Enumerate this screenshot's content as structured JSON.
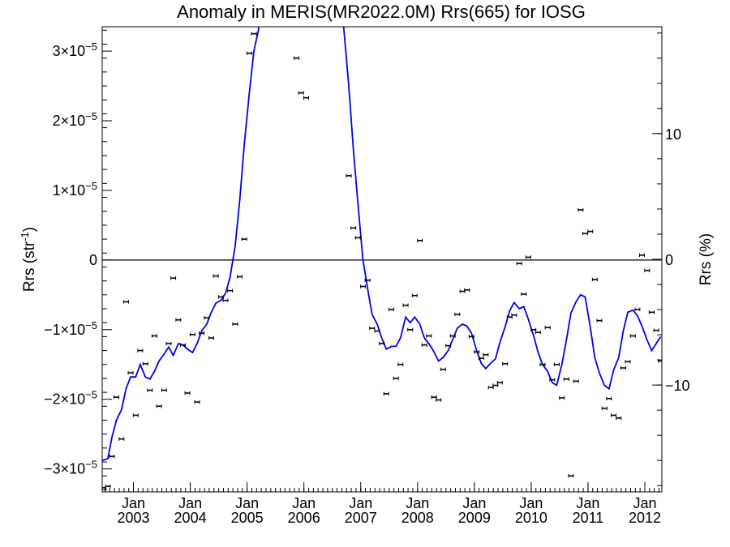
{
  "chart_data": {
    "type": "scatter",
    "title": "Anomaly in MERIS(MR2022.0M) Rrs(665) for IOSG",
    "ylabel": "Rrs (str",
    "ylabel_sup": "-1",
    "ylabel_close": ")",
    "y2label": "Rrs (%)",
    "xlim": [
      2002.45,
      2012.3
    ],
    "ylim": [
      -3.33e-05,
      3.35e-05
    ],
    "y2lim": [
      -18.5,
      18.5
    ],
    "grid": false,
    "zero_line": true,
    "y_ticks": [
      {
        "value": -3e-05,
        "mant": "−3×10",
        "exp": "−5"
      },
      {
        "value": -2e-05,
        "mant": "−2×10",
        "exp": "−5"
      },
      {
        "value": -1e-05,
        "mant": "−1×10",
        "exp": "−5"
      },
      {
        "value": 0,
        "mant": "0",
        "exp": ""
      },
      {
        "value": 1e-05,
        "mant": "1×10",
        "exp": "−5"
      },
      {
        "value": 2e-05,
        "mant": "2×10",
        "exp": "−5"
      },
      {
        "value": 3e-05,
        "mant": "3×10",
        "exp": "−5"
      }
    ],
    "y2_ticks": [
      {
        "value": -10,
        "label": "−10"
      },
      {
        "value": 0,
        "label": "0"
      },
      {
        "value": 10,
        "label": "10"
      }
    ],
    "x_ticks": [
      {
        "value": 2003.0,
        "month": "Jan",
        "year": "2003"
      },
      {
        "value": 2004.0,
        "month": "Jan",
        "year": "2004"
      },
      {
        "value": 2005.0,
        "month": "Jan",
        "year": "2005"
      },
      {
        "value": 2006.0,
        "month": "Jan",
        "year": "2006"
      },
      {
        "value": 2007.0,
        "month": "Jan",
        "year": "2007"
      },
      {
        "value": 2008.0,
        "month": "Jan",
        "year": "2008"
      },
      {
        "value": 2009.0,
        "month": "Jan",
        "year": "2009"
      },
      {
        "value": 2010.0,
        "month": "Jan",
        "year": "2010"
      },
      {
        "value": 2011.0,
        "month": "Jan",
        "year": "2011"
      },
      {
        "value": 2012.0,
        "month": "Jan",
        "year": "2012"
      }
    ],
    "series": [
      {
        "style": "points-with-errorbars",
        "color": "#000000",
        "x": [
          2002.47,
          2002.55,
          2002.62,
          2002.7,
          2002.79,
          2002.87,
          2002.95,
          2003.04,
          2003.12,
          2003.21,
          2003.29,
          2003.37,
          2003.45,
          2003.54,
          2003.62,
          2003.7,
          2003.79,
          2003.87,
          2003.95,
          2004.04,
          2004.12,
          2004.2,
          2004.29,
          2004.37,
          2004.45,
          2004.54,
          2004.62,
          2004.7,
          2004.79,
          2004.87,
          2004.95,
          2005.04,
          2005.12,
          2005.87,
          2005.95,
          2006.04,
          2006.79,
          2006.87,
          2006.95,
          2007.04,
          2007.12,
          2007.2,
          2007.29,
          2007.37,
          2007.45,
          2007.54,
          2007.62,
          2007.7,
          2007.79,
          2007.87,
          2007.95,
          2008.04,
          2008.12,
          2008.2,
          2008.29,
          2008.37,
          2008.45,
          2008.54,
          2008.62,
          2008.7,
          2008.79,
          2008.87,
          2008.95,
          2009.04,
          2009.12,
          2009.2,
          2009.29,
          2009.37,
          2009.45,
          2009.54,
          2009.62,
          2009.7,
          2009.79,
          2009.87,
          2009.95,
          2010.04,
          2010.12,
          2010.2,
          2010.29,
          2010.37,
          2010.45,
          2010.54,
          2010.62,
          2010.7,
          2010.79,
          2010.87,
          2010.95,
          2011.04,
          2011.12,
          2011.2,
          2011.29,
          2011.37,
          2011.45,
          2011.54,
          2011.62,
          2011.7,
          2011.79,
          2011.87,
          2011.95,
          2012.04,
          2012.12,
          2012.2,
          2012.28
        ],
        "y": [
          -3.27e-05,
          -3.25e-05,
          -2.82e-05,
          -1.97e-05,
          -2.57e-05,
          -6e-06,
          -1.62e-05,
          -2.23e-05,
          -1.3e-05,
          -1.49e-05,
          -1.87e-05,
          -1.09e-05,
          -2.1e-05,
          -1.87e-05,
          -1.2e-05,
          -2.6e-06,
          -8.6e-06,
          -1.22e-05,
          -1.91e-05,
          -1.07e-05,
          -2.04e-05,
          -1.05e-05,
          -8.3e-06,
          -1.12e-05,
          -2.3e-06,
          -5.3e-06,
          -5.8e-06,
          -4.4e-06,
          -9.2e-06,
          -2.4e-06,
          3e-06,
          2.97e-05,
          3.25e-05,
          2.9e-05,
          2.4e-05,
          2.33e-05,
          1.21e-05,
          4.6e-06,
          3.2e-06,
          -3.8e-06,
          -2.9e-06,
          -9.8e-06,
          -1.02e-05,
          -1.2e-05,
          -1.92e-05,
          -7.1e-06,
          -1.7e-05,
          -1.5e-05,
          -6.5e-06,
          -1e-05,
          -5.1e-06,
          2.8e-06,
          -1.22e-05,
          -1.09e-05,
          -1.97e-05,
          -2.01e-05,
          -1.57e-05,
          -1.23e-05,
          -1.09e-05,
          -7.8e-06,
          -4.5e-06,
          -4.3e-06,
          -1.1e-05,
          -1.32e-05,
          -1.41e-05,
          -1.36e-05,
          -1.83e-05,
          -1.8e-05,
          -1.76e-05,
          -1.49e-05,
          -8.2e-06,
          -7.9e-06,
          -5e-07,
          -4.9e-06,
          4e-07,
          -1e-05,
          -1.04e-05,
          -1.5e-05,
          -9.7e-06,
          -1.72e-05,
          -1.5e-05,
          -1.98e-05,
          -1.71e-05,
          -3.1e-05,
          -1.74e-05,
          7.2e-06,
          3.8e-06,
          4.1e-06,
          -2.8e-06,
          -8.7e-06,
          -2.13e-05,
          -1.99e-05,
          -2.23e-05,
          -2.27e-05,
          -1.55e-05,
          -1.46e-05,
          -1.09e-05,
          -7.1e-06,
          7e-07,
          -1.5e-06,
          -7.5e-06,
          -1.01e-05,
          -1.45e-05
        ],
        "error": 2e-07
      },
      {
        "style": "line",
        "color": "#0000ee",
        "x": [
          2002.45,
          2002.55,
          2002.62,
          2002.7,
          2002.79,
          2002.87,
          2002.95,
          2003.04,
          2003.12,
          2003.21,
          2003.29,
          2003.37,
          2003.45,
          2003.54,
          2003.62,
          2003.7,
          2003.79,
          2003.87,
          2003.95,
          2004.04,
          2004.12,
          2004.2,
          2004.29,
          2004.37,
          2004.45,
          2004.54,
          2004.62,
          2004.7,
          2004.79,
          2004.87,
          2004.95,
          2005.04,
          2005.12,
          2005.2,
          2005.29,
          2005.37,
          2005.45,
          2005.54,
          2005.62,
          2005.7,
          2005.79,
          2005.87,
          2005.95,
          2006.04,
          2006.12,
          2006.2,
          2006.29,
          2006.37,
          2006.45,
          2006.54,
          2006.62,
          2006.7,
          2006.79,
          2006.87,
          2006.95,
          2007.04,
          2007.12,
          2007.2,
          2007.29,
          2007.37,
          2007.45,
          2007.54,
          2007.62,
          2007.7,
          2007.79,
          2007.87,
          2007.95,
          2008.04,
          2008.12,
          2008.2,
          2008.29,
          2008.37,
          2008.45,
          2008.54,
          2008.62,
          2008.7,
          2008.79,
          2008.87,
          2008.95,
          2009.04,
          2009.12,
          2009.2,
          2009.29,
          2009.37,
          2009.45,
          2009.54,
          2009.62,
          2009.7,
          2009.79,
          2009.87,
          2009.95,
          2010.04,
          2010.12,
          2010.2,
          2010.29,
          2010.37,
          2010.45,
          2010.54,
          2010.62,
          2010.7,
          2010.79,
          2010.87,
          2010.95,
          2011.04,
          2011.12,
          2011.2,
          2011.29,
          2011.37,
          2011.45,
          2011.54,
          2011.62,
          2011.7,
          2011.79,
          2011.87,
          2011.95,
          2012.04,
          2012.12,
          2012.2,
          2012.28
        ],
        "y": [
          -2.88e-05,
          -2.85e-05,
          -2.55e-05,
          -2.3e-05,
          -2.15e-05,
          -1.85e-05,
          -1.68e-05,
          -1.68e-05,
          -1.5e-05,
          -1.68e-05,
          -1.71e-05,
          -1.6e-05,
          -1.45e-05,
          -1.35e-05,
          -1.25e-05,
          -1.37e-05,
          -1.2e-05,
          -1.22e-05,
          -1.28e-05,
          -1.33e-05,
          -1.2e-05,
          -1.02e-05,
          -9.2e-06,
          -7.5e-06,
          -6.2e-06,
          -5.8e-06,
          -4.8e-06,
          -2.5e-06,
          2e-06,
          8.5e-06,
          1.65e-05,
          2.4e-05,
          3e-05,
          3.3e-05,
          3.8e-05,
          4.5e-05,
          5.2e-05,
          5.6e-05,
          5.8e-05,
          5.8e-05,
          5.6e-05,
          5.2e-05,
          4.7e-05,
          4.3e-05,
          3.9e-05,
          3.6e-05,
          3.5e-05,
          3.5e-05,
          3.5e-05,
          3.5e-05,
          3.5e-05,
          3.35e-05,
          2.5e-05,
          1.6e-05,
          8.2e-06,
          0.0,
          -4e-06,
          -7.8e-06,
          -9.2e-06,
          -1.12e-05,
          -1.28e-05,
          -1.24e-05,
          -1.24e-05,
          -1.12e-05,
          -8.2e-06,
          -9e-06,
          -8.2e-06,
          -9.2e-06,
          -1.12e-05,
          -1.2e-05,
          -1.32e-05,
          -1.45e-05,
          -1.4e-05,
          -1.3e-05,
          -1.14e-05,
          -9.8e-06,
          -9.2e-06,
          -9.5e-06,
          -1.05e-05,
          -1.3e-05,
          -1.48e-05,
          -1.56e-05,
          -1.48e-05,
          -1.42e-05,
          -1.18e-05,
          -9.6e-06,
          -7.3e-06,
          -6.1e-06,
          -7e-06,
          -6.7e-06,
          -8.5e-06,
          -1.08e-05,
          -1.32e-05,
          -1.5e-05,
          -1.6e-05,
          -1.76e-05,
          -1.8e-05,
          -1.5e-05,
          -1.15e-05,
          -7.6e-06,
          -6e-06,
          -5e-06,
          -5.3e-06,
          -9.6e-06,
          -1.4e-05,
          -1.62e-05,
          -1.8e-05,
          -1.85e-05,
          -1.58e-05,
          -1.4e-05,
          -1.02e-05,
          -7.5e-06,
          -7.2e-06,
          -8e-06,
          -9.5e-06,
          -1.15e-05,
          -1.3e-05,
          -1.2e-05,
          -1.1e-05
        ]
      }
    ]
  }
}
